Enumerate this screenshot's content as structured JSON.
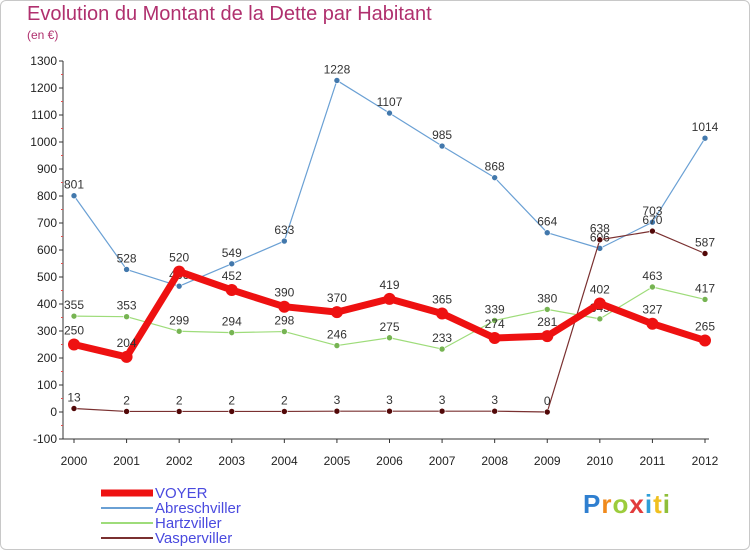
{
  "title": "Evolution du Montant de la Dette par Habitant",
  "unit": "(en €)",
  "brand": {
    "letters": [
      "P",
      "r",
      "o",
      "x",
      "i",
      "t",
      "i"
    ],
    "colors": [
      "#2f7fd0",
      "#f08a1c",
      "#9ccc3c",
      "#e23b3b",
      "#2f9fd8",
      "#f0c020",
      "#8fbf3a"
    ]
  },
  "chart_data": {
    "type": "line",
    "title": "Evolution du Montant de la Dette par Habitant",
    "ylabel": "(en €)",
    "xlabel": "",
    "x": [
      "2000",
      "2001",
      "2002",
      "2003",
      "2004",
      "2005",
      "2006",
      "2007",
      "2008",
      "2009",
      "2010",
      "2011",
      "2012"
    ],
    "ylim": [
      -100,
      1300
    ],
    "yticks": [
      -100,
      0,
      100,
      200,
      300,
      400,
      500,
      600,
      700,
      800,
      900,
      1000,
      1100,
      1200,
      1300
    ],
    "grid": false,
    "legend": "bottom-left",
    "series": [
      {
        "name": "VOYER",
        "color": "#ee1111",
        "width": 7,
        "marker": 6,
        "values": [
          250,
          204,
          520,
          452,
          390,
          370,
          419,
          365,
          274,
          281,
          402,
          327,
          265
        ]
      },
      {
        "name": "Abreschviller",
        "color": "#6aa0d4",
        "width": 1.2,
        "marker": 3,
        "values": [
          801,
          528,
          466,
          549,
          633,
          1228,
          1107,
          985,
          868,
          664,
          606,
          703,
          1014
        ]
      },
      {
        "name": "Hartzviller",
        "color": "#9edc7a",
        "width": 1.2,
        "marker": 3,
        "values": [
          355,
          353,
          299,
          294,
          298,
          246,
          275,
          233,
          339,
          380,
          345,
          463,
          417
        ]
      },
      {
        "name": "Vasperviller",
        "color": "#7a3030",
        "width": 1.2,
        "marker": 3,
        "values": [
          13,
          2,
          2,
          2,
          2,
          3,
          3,
          3,
          3,
          0,
          638,
          670,
          587
        ]
      }
    ]
  }
}
